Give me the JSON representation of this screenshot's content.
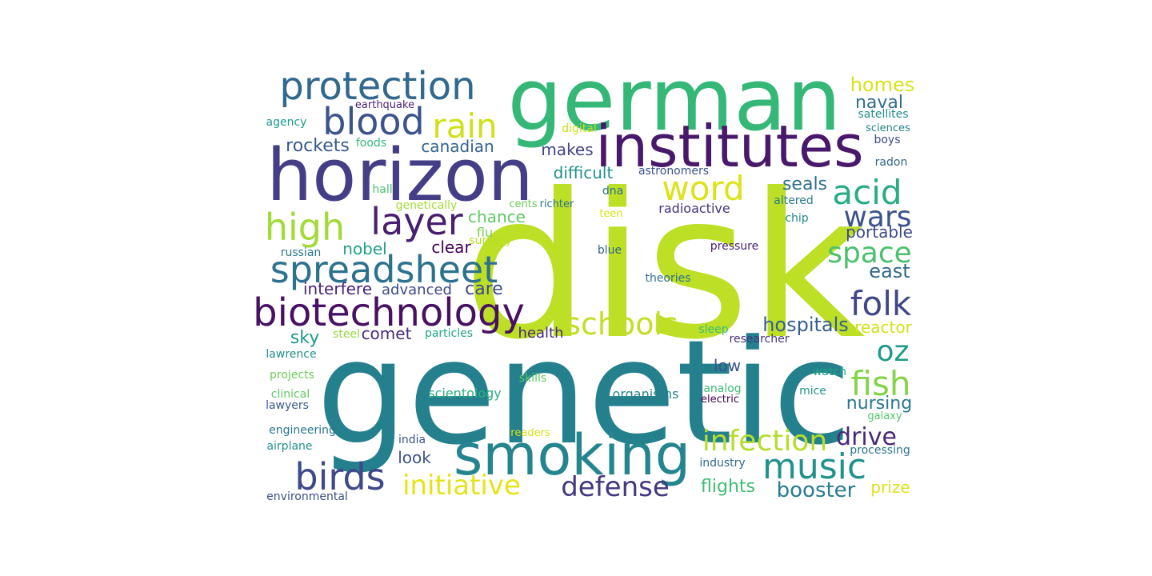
{
  "words": [
    {
      "text": "disk",
      "color": "#bddf26"
    },
    {
      "text": "genetic",
      "color": "#24808d"
    },
    {
      "text": "german",
      "color": "#35b778"
    },
    {
      "text": "horizon",
      "color": "#433e85"
    },
    {
      "text": "institutes",
      "color": "#48186a"
    },
    {
      "text": "smoking",
      "color": "#25858e"
    },
    {
      "text": "protection",
      "color": "#31688e"
    },
    {
      "text": "biotechnology",
      "color": "#471063"
    },
    {
      "text": "spreadsheet",
      "color": "#2c728e"
    },
    {
      "text": "blood",
      "color": "#3b528b"
    },
    {
      "text": "music",
      "color": "#21918c"
    },
    {
      "text": "birds",
      "color": "#3e4989"
    },
    {
      "text": "layer",
      "color": "#481f70"
    },
    {
      "text": "high",
      "color": "#a2da37"
    },
    {
      "text": "rain",
      "color": "#d0e11c"
    },
    {
      "text": "word",
      "color": "#dde318"
    },
    {
      "text": "acid",
      "color": "#27ad81"
    },
    {
      "text": "folk",
      "color": "#3f4788"
    },
    {
      "text": "fish",
      "color": "#84d44b"
    },
    {
      "text": "infection",
      "color": "#b5de2b"
    },
    {
      "text": "defense",
      "color": "#453781"
    },
    {
      "text": "initiative",
      "color": "#e5e419"
    },
    {
      "text": "schools",
      "color": "#c0df25"
    },
    {
      "text": "space",
      "color": "#4ac16d"
    },
    {
      "text": "wars",
      "color": "#3b528b"
    },
    {
      "text": "oz",
      "color": "#1f9a8a"
    },
    {
      "text": "drive",
      "color": "#482878"
    },
    {
      "text": "booster",
      "color": "#287c8e"
    },
    {
      "text": "flights",
      "color": "#3dbc74"
    },
    {
      "text": "nursing",
      "color": "#2a788e"
    },
    {
      "text": "hospitals",
      "color": "#355f8d"
    },
    {
      "text": "homes",
      "color": "#d8e219"
    },
    {
      "text": "naval",
      "color": "#2f6c8e"
    },
    {
      "text": "rockets",
      "color": "#38598c"
    },
    {
      "text": "canadian",
      "color": "#33638d"
    },
    {
      "text": "makes",
      "color": "#414487"
    },
    {
      "text": "difficult",
      "color": "#21918c"
    },
    {
      "text": "chance",
      "color": "#5ec962"
    },
    {
      "text": "seals",
      "color": "#2d708e"
    },
    {
      "text": "portable",
      "color": "#3e4989"
    },
    {
      "text": "east",
      "color": "#31688e"
    },
    {
      "text": "nobel",
      "color": "#1f9e89"
    },
    {
      "text": "clear",
      "color": "#440154"
    },
    {
      "text": "care",
      "color": "#3e4a89"
    },
    {
      "text": "interfere",
      "color": "#482475"
    },
    {
      "text": "advanced",
      "color": "#3e4989"
    },
    {
      "text": "sky",
      "color": "#1e9b8a"
    },
    {
      "text": "comet",
      "color": "#472c7a"
    },
    {
      "text": "health",
      "color": "#482979"
    },
    {
      "text": "reactor",
      "color": "#d2e21b"
    },
    {
      "text": "low",
      "color": "#3b528b"
    },
    {
      "text": "flu",
      "color": "#7ad151"
    },
    {
      "text": "look",
      "color": "#3b528b"
    },
    {
      "text": "prize",
      "color": "#dde318"
    },
    {
      "text": "agency",
      "color": "#1f9a8a"
    },
    {
      "text": "earthquake",
      "color": "#482475"
    },
    {
      "text": "digital",
      "color": "#c8e020"
    },
    {
      "text": "satellites",
      "color": "#228c8d"
    },
    {
      "text": "sciences",
      "color": "#26828e"
    },
    {
      "text": "foods",
      "color": "#35b779"
    },
    {
      "text": "boys",
      "color": "#3e4989"
    },
    {
      "text": "radon",
      "color": "#33638d"
    },
    {
      "text": "astronomers",
      "color": "#3b528b"
    },
    {
      "text": "hall",
      "color": "#4ac16d"
    },
    {
      "text": "dna",
      "color": "#2c728e"
    },
    {
      "text": "altered",
      "color": "#287d8e"
    },
    {
      "text": "genetically",
      "color": "#a5db36"
    },
    {
      "text": "cents",
      "color": "#6ccd5a"
    },
    {
      "text": "richter",
      "color": "#2d708e"
    },
    {
      "text": "teen",
      "color": "#d5e21a"
    },
    {
      "text": "radioactive",
      "color": "#46337e"
    },
    {
      "text": "chip",
      "color": "#23888e"
    },
    {
      "text": "surgery",
      "color": "#b8de29"
    },
    {
      "text": "russian",
      "color": "#2a768e"
    },
    {
      "text": "blue",
      "color": "#33638d"
    },
    {
      "text": "pressure",
      "color": "#481f70"
    },
    {
      "text": "theories",
      "color": "#2e6e8e"
    },
    {
      "text": "steel",
      "color": "#93d741"
    },
    {
      "text": "particles",
      "color": "#20a386"
    },
    {
      "text": "sleep",
      "color": "#3dbc74"
    },
    {
      "text": "researcher",
      "color": "#46327e"
    },
    {
      "text": "lawrence",
      "color": "#228d8d"
    },
    {
      "text": "watch",
      "color": "#20a486"
    },
    {
      "text": "projects",
      "color": "#6ccd5a"
    },
    {
      "text": "skills",
      "color": "#5ec962"
    },
    {
      "text": "analog",
      "color": "#3dbc74"
    },
    {
      "text": "clinical",
      "color": "#5ec962"
    },
    {
      "text": "scientology",
      "color": "#2ab07f"
    },
    {
      "text": "organisms",
      "color": "#26818e"
    },
    {
      "text": "electric",
      "color": "#440154"
    },
    {
      "text": "mice",
      "color": "#1f968b"
    },
    {
      "text": "lawyers",
      "color": "#38588c"
    },
    {
      "text": "galaxy",
      "color": "#52c569"
    },
    {
      "text": "engineering",
      "color": "#2a768e"
    },
    {
      "text": "readers",
      "color": "#d8e219"
    },
    {
      "text": "india",
      "color": "#3b528b"
    },
    {
      "text": "airplane",
      "color": "#21918c"
    },
    {
      "text": "processing",
      "color": "#2b748e"
    },
    {
      "text": "industry",
      "color": "#31688e"
    },
    {
      "text": "environmental",
      "color": "#3d4e8a"
    }
  ]
}
